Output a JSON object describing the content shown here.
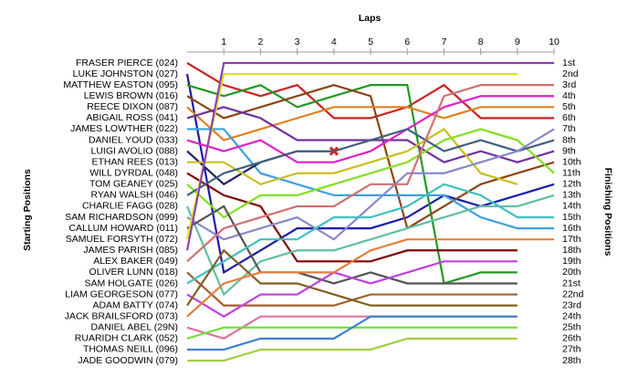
{
  "chart_data": {
    "type": "line",
    "title": "Laps",
    "y_label_left": "Starting Positions",
    "y_label_right": "Finishing Positions",
    "x": [
      0,
      1,
      2,
      3,
      4,
      5,
      6,
      7,
      8,
      9,
      10
    ],
    "xlim": [
      0,
      10
    ],
    "xticks": [
      1,
      2,
      3,
      4,
      5,
      6,
      7,
      8,
      9,
      10
    ],
    "ylim": [
      1,
      28
    ],
    "inverted": true,
    "finishing_labels": [
      "1st",
      "2nd",
      "3rd",
      "4th",
      "5th",
      "6th",
      "7th",
      "8th",
      "9th",
      "10th",
      "11th",
      "12th",
      "13th",
      "14th",
      "15th",
      "16th",
      "17th",
      "18th",
      "19th",
      "20th",
      "21st",
      "22nd",
      "23rd",
      "24th",
      "25th",
      "26th",
      "27th",
      "28th"
    ],
    "series": [
      {
        "name": "FRASER PIERCE (024)",
        "color": "#cc2222",
        "values": [
          1,
          3,
          4,
          3,
          6,
          6,
          5,
          3,
          6,
          6,
          6
        ]
      },
      {
        "name": "LUKE JOHNSTON (027)",
        "color": "#1a1aa8",
        "values": [
          2,
          20,
          18,
          16,
          16,
          16,
          15,
          13,
          14,
          13,
          12
        ]
      },
      {
        "name": "MATTHEW EASTON (095)",
        "color": "#229922",
        "values": [
          3,
          4,
          3,
          5,
          4,
          3,
          3,
          21,
          20,
          20,
          null
        ]
      },
      {
        "name": "LEWIS BROWN (016)",
        "color": "#8b4513",
        "values": [
          4,
          6,
          5,
          4,
          3,
          4,
          16,
          14,
          12,
          11,
          10
        ]
      },
      {
        "name": "REECE DIXON (087)",
        "color": "#e08020",
        "values": [
          5,
          8,
          7,
          6,
          5,
          5,
          5,
          6,
          5,
          5,
          5
        ]
      },
      {
        "name": "ABIGAIL ROSS (041)",
        "color": "#7030a0",
        "values": [
          6,
          5,
          6,
          8,
          8,
          8,
          8,
          10,
          9,
          10,
          9
        ]
      },
      {
        "name": "JAMES LOWTHER (022)",
        "color": "#3fa0e0",
        "values": [
          7,
          7,
          11,
          12,
          13,
          13,
          13,
          13,
          15,
          16,
          16
        ]
      },
      {
        "name": "DANIEL YOUD (033)",
        "color": "#e020c8",
        "values": [
          8,
          9,
          8,
          10,
          10,
          9,
          7,
          5,
          4,
          4,
          4
        ]
      },
      {
        "name": "LUIGI AVOLIO (088)",
        "color": "#202060",
        "end_marker": "x",
        "values": [
          9,
          12,
          10,
          9,
          9,
          null,
          null,
          null,
          null,
          null,
          null
        ]
      },
      {
        "name": "ETHAN REES (013)",
        "color": "#c8c020",
        "values": [
          10,
          10,
          12,
          11,
          11,
          10,
          9,
          7,
          11,
          12,
          null
        ]
      },
      {
        "name": "WILL DYRDAL (048)",
        "color": "#800000",
        "values": [
          11,
          13,
          14,
          19,
          19,
          19,
          18,
          18,
          18,
          18,
          null
        ]
      },
      {
        "name": "TOM GEANEY (025)",
        "color": "#80e020",
        "values": [
          12,
          15,
          13,
          13,
          12,
          11,
          10,
          8,
          7,
          8,
          11
        ]
      },
      {
        "name": "RYAN WALSH (046)",
        "color": "#406080",
        "values": [
          13,
          11,
          10,
          9,
          9,
          8,
          7,
          9,
          8,
          9,
          8
        ]
      },
      {
        "name": "CHARLIE FAGG (028)",
        "color": "#60c0a0",
        "values": [
          14,
          22,
          19,
          18,
          18,
          17,
          16,
          15,
          14,
          14,
          13
        ]
      },
      {
        "name": "SAM RICHARDSON (099)",
        "color": "#8888cc",
        "values": [
          15,
          17,
          16,
          15,
          17,
          14,
          11,
          11,
          10,
          9,
          7
        ]
      },
      {
        "name": "CALLUM HOWARD (011)",
        "color": "#555555",
        "values": [
          16,
          14,
          20,
          20,
          21,
          20,
          21,
          21,
          21,
          21,
          null
        ]
      },
      {
        "name": "SAMUEL FORSYTH (072)",
        "color": "#e0e020",
        "values": [
          17,
          2,
          2,
          2,
          2,
          2,
          2,
          2,
          2,
          2,
          null
        ]
      },
      {
        "name": "JAMES PARISH (085)",
        "color": "#9040b0",
        "values": [
          18,
          1,
          1,
          1,
          1,
          1,
          1,
          1,
          1,
          1,
          1
        ]
      },
      {
        "name": "ALEX BAKER (049)",
        "color": "#d07070",
        "values": [
          19,
          16,
          15,
          14,
          14,
          12,
          12,
          4,
          3,
          3,
          3
        ]
      },
      {
        "name": "OLIVER LUNN (018)",
        "color": "#a06030",
        "values": [
          20,
          23,
          23,
          23,
          23,
          22,
          22,
          22,
          22,
          22,
          null
        ]
      },
      {
        "name": "SAM HOLGATE (026)",
        "color": "#40c0c0",
        "values": [
          21,
          19,
          17,
          17,
          15,
          15,
          14,
          12,
          13,
          15,
          15
        ]
      },
      {
        "name": "LIAM GEORGESON (077)",
        "color": "#c040e0",
        "values": [
          22,
          24,
          22,
          22,
          20,
          21,
          20,
          19,
          19,
          19,
          null
        ]
      },
      {
        "name": "ADAM BATTY (074)",
        "color": "#806020",
        "values": [
          23,
          18,
          21,
          21,
          22,
          23,
          23,
          23,
          23,
          23,
          null
        ]
      },
      {
        "name": "JACK BRAILSFORD (073)",
        "color": "#e08040",
        "values": [
          24,
          21,
          20,
          20,
          20,
          18,
          17,
          17,
          17,
          17,
          17
        ]
      },
      {
        "name": "DANIEL ABEL (29N)",
        "color": "#e070a0",
        "values": [
          25,
          26,
          24,
          24,
          24,
          24,
          24,
          24,
          24,
          24,
          null
        ]
      },
      {
        "name": "RUARIDH CLARK (052)",
        "color": "#70e040",
        "values": [
          26,
          25,
          25,
          25,
          25,
          25,
          25,
          25,
          25,
          25,
          null
        ]
      },
      {
        "name": "THOMAS NEILL (096)",
        "color": "#3a80d0",
        "values": [
          27,
          27,
          26,
          26,
          26,
          24,
          24,
          24,
          24,
          24,
          null
        ]
      },
      {
        "name": "JADE GOODWIN (079)",
        "color": "#a0d040",
        "values": [
          28,
          28,
          27,
          27,
          27,
          27,
          26,
          26,
          26,
          26,
          null
        ]
      }
    ]
  }
}
